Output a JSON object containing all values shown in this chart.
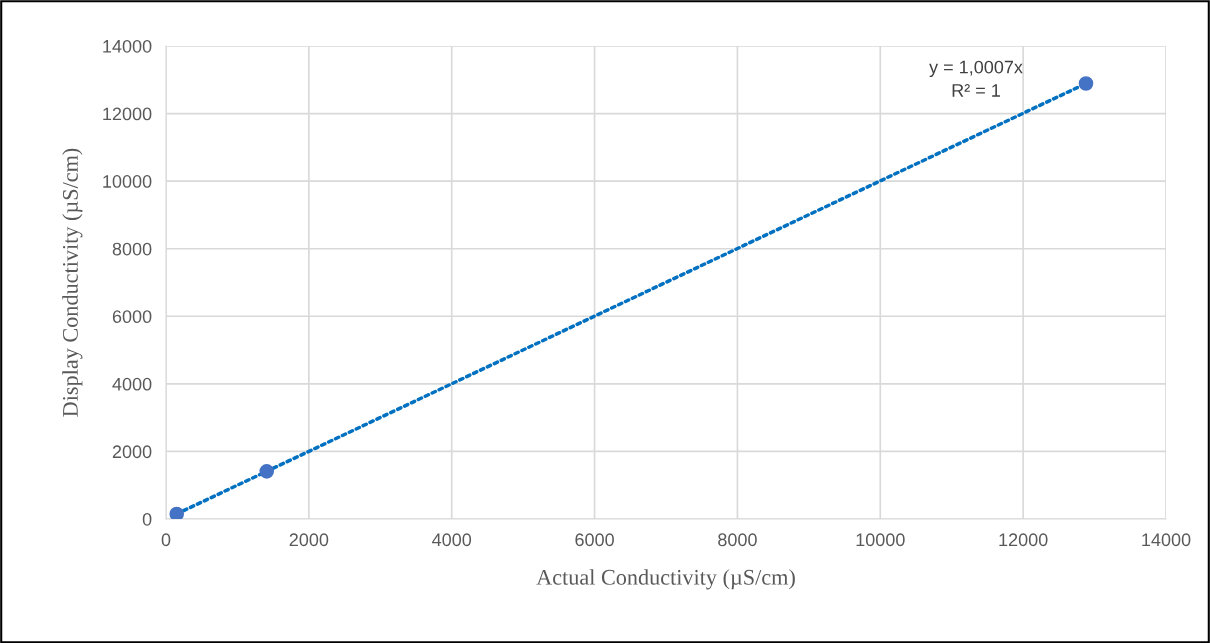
{
  "chart_data": {
    "type": "scatter",
    "xlabel": "Actual Conductivity (µS/cm)",
    "ylabel": "Display Conductivity (µS/cm)",
    "series": [
      {
        "color": "#4472c4",
        "x": [
          150,
          1410,
          12880
        ],
        "values": [
          150,
          1410,
          12890
        ]
      },
      {
        "type": "line",
        "color": "#0070c0",
        "x": [
          150,
          12880
        ],
        "values": [
          150,
          12890
        ],
        "line_style": "dotted"
      }
    ],
    "annotations": [
      "y = 1,0007x\nR² = 1"
    ],
    "xlim": [
      0,
      14000
    ],
    "xticks": [
      0,
      2000,
      4000,
      6000,
      8000,
      10000,
      12000,
      14000
    ],
    "ylim": [
      0,
      14000
    ],
    "yticks": [
      0,
      2000,
      4000,
      6000,
      8000,
      10000,
      12000,
      14000
    ],
    "grid": true
  }
}
